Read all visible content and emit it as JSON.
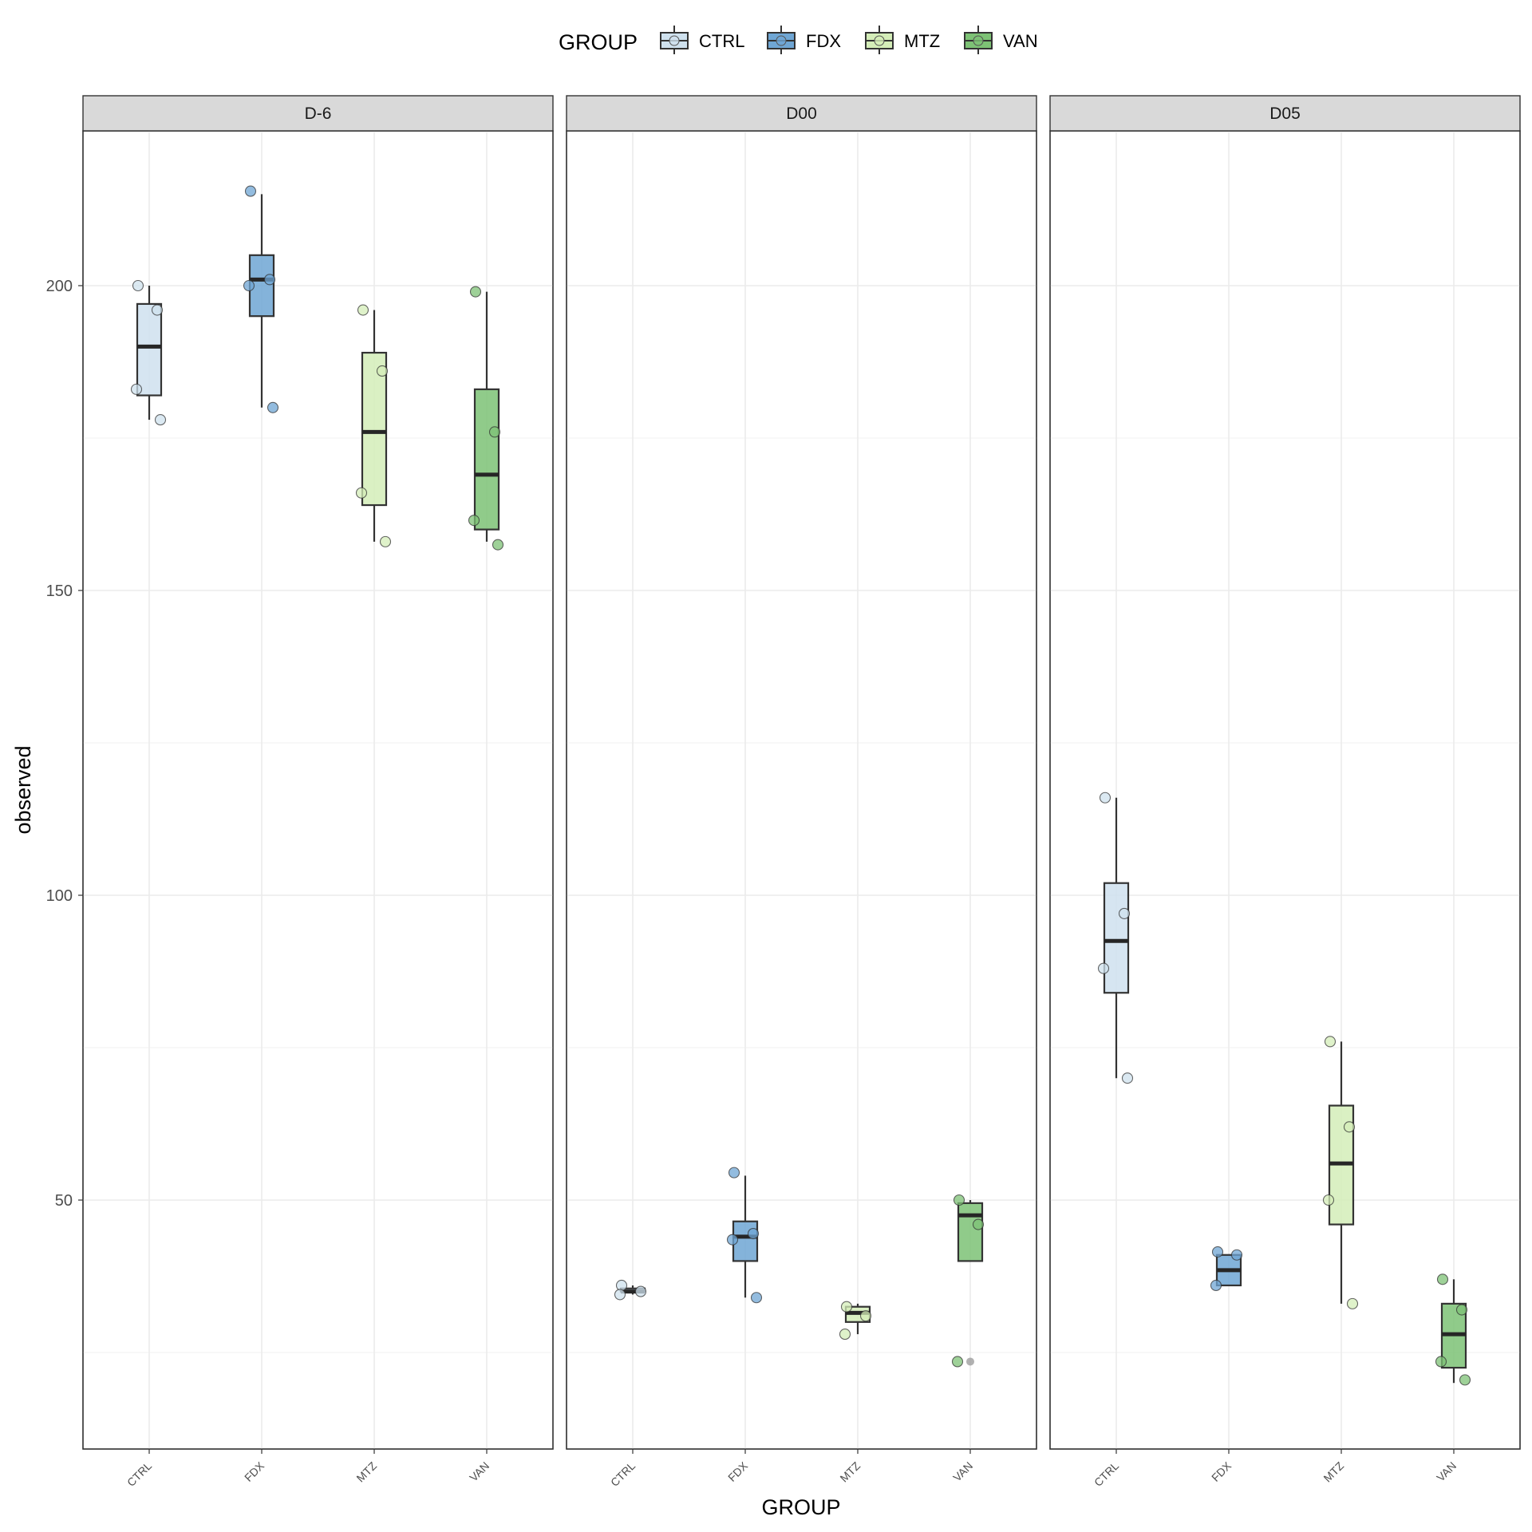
{
  "chart_data": {
    "type": "box",
    "ylabel": "observed",
    "xlabel": "GROUP",
    "legend": {
      "title": "GROUP",
      "position": "top",
      "entries": [
        {
          "label": "CTRL",
          "color": "#cfe1ee"
        },
        {
          "label": "FDX",
          "color": "#6fa6d4"
        },
        {
          "label": "MTZ",
          "color": "#d4edb8"
        },
        {
          "label": "VAN",
          "color": "#7dc275"
        }
      ]
    },
    "ylim": [
      10,
      230
    ],
    "y_ticks": [
      50,
      100,
      150,
      200
    ],
    "grid": true,
    "categories": [
      "CTRL",
      "FDX",
      "MTZ",
      "VAN"
    ],
    "colors": {
      "CTRL": "#cfe1ee",
      "FDX": "#6fa6d4",
      "MTZ": "#d4edb8",
      "VAN": "#7dc275"
    },
    "panels": [
      {
        "label": "D-6",
        "groups": [
          {
            "group": "CTRL",
            "box": {
              "lower_whisker": 178,
              "q1": 182,
              "median": 190,
              "q3": 197,
              "upper_whisker": 200
            },
            "points": [
              200,
              196,
              183,
              178
            ]
          },
          {
            "group": "FDX",
            "box": {
              "lower_whisker": 180,
              "q1": 195,
              "median": 201,
              "q3": 205,
              "upper_whisker": 215
            },
            "points": [
              215.5,
              201,
              200,
              180
            ]
          },
          {
            "group": "MTZ",
            "box": {
              "lower_whisker": 158,
              "q1": 164,
              "median": 176,
              "q3": 189,
              "upper_whisker": 196
            },
            "points": [
              196,
              186,
              166,
              158
            ]
          },
          {
            "group": "VAN",
            "box": {
              "lower_whisker": 158,
              "q1": 160,
              "median": 169,
              "q3": 183,
              "upper_whisker": 199
            },
            "points": [
              199,
              176,
              161.5,
              157.5
            ]
          }
        ]
      },
      {
        "label": "D00",
        "groups": [
          {
            "group": "CTRL",
            "box": {
              "lower_whisker": 34.5,
              "q1": 35,
              "median": 35,
              "q3": 35.5,
              "upper_whisker": 36
            },
            "points": [
              36,
              35,
              34.5
            ]
          },
          {
            "group": "FDX",
            "box": {
              "lower_whisker": 34,
              "q1": 40,
              "median": 44,
              "q3": 46.5,
              "upper_whisker": 54
            },
            "points": [
              54.5,
              44.5,
              43.5,
              34
            ]
          },
          {
            "group": "MTZ",
            "box": {
              "lower_whisker": 28,
              "q1": 30,
              "median": 31.5,
              "q3": 32.5,
              "upper_whisker": 33
            },
            "points": [
              32.5,
              31,
              28
            ]
          },
          {
            "group": "VAN",
            "box": {
              "lower_whisker": 40,
              "q1": 40,
              "median": 47.5,
              "q3": 49.5,
              "upper_whisker": 50
            },
            "points": [
              50,
              46,
              23.5
            ],
            "outliers": [
              23.5
            ]
          }
        ]
      },
      {
        "label": "D05",
        "groups": [
          {
            "group": "CTRL",
            "box": {
              "lower_whisker": 70,
              "q1": 84,
              "median": 92.5,
              "q3": 102,
              "upper_whisker": 116
            },
            "points": [
              116,
              97,
              88,
              70
            ]
          },
          {
            "group": "FDX",
            "box": {
              "lower_whisker": 36,
              "q1": 36,
              "median": 38.5,
              "q3": 41,
              "upper_whisker": 41
            },
            "points": [
              41.5,
              41,
              36
            ]
          },
          {
            "group": "MTZ",
            "box": {
              "lower_whisker": 33,
              "q1": 46,
              "median": 56,
              "q3": 65.5,
              "upper_whisker": 76
            },
            "points": [
              76,
              62,
              50,
              33
            ]
          },
          {
            "group": "VAN",
            "box": {
              "lower_whisker": 20,
              "q1": 22.5,
              "median": 28,
              "q3": 33,
              "upper_whisker": 37
            },
            "points": [
              37,
              32,
              23.5,
              20.5
            ]
          }
        ]
      }
    ]
  }
}
